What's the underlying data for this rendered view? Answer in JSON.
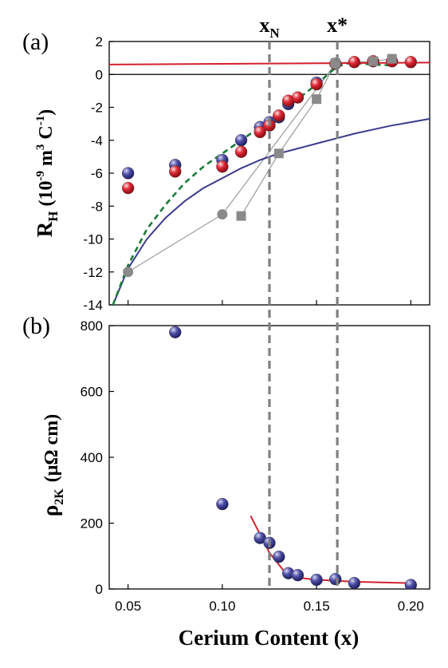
{
  "colors": {
    "blue": "#3a3a8c",
    "red": "#d4202e",
    "green_dashed": "#1a7a3a",
    "gray": "#8a8a8a",
    "marker_line": "#808080"
  },
  "chart_data": [
    {
      "panel": "(a)",
      "type": "scatter",
      "ylabel_main": "R",
      "ylabel_sub": "H",
      "ylabel_units": "(10",
      "ylabel_exp": "-9",
      "ylabel_units2": " m",
      "ylabel_exp2": "3",
      "ylabel_units3": " C",
      "ylabel_exp3": "-1",
      "ylabel_units4": ")",
      "xlim": [
        0.04,
        0.21
      ],
      "ylim": [
        -14,
        2
      ],
      "yticks": [
        2,
        0,
        -2,
        -4,
        -6,
        -8,
        -10,
        -12,
        -14
      ],
      "ytick_labels": [
        "2",
        "0",
        "-2",
        "-4",
        "-6",
        "-8",
        "-10",
        "-12",
        "-14"
      ],
      "series": [
        {
          "marker": "sphere",
          "color": "blue",
          "points": [
            [
              0.05,
              -6.0
            ],
            [
              0.075,
              -5.5
            ],
            [
              0.1,
              -5.2
            ],
            [
              0.11,
              -4.0
            ],
            [
              0.12,
              -3.2
            ],
            [
              0.125,
              -2.9
            ],
            [
              0.13,
              -2.6
            ],
            [
              0.135,
              -1.8
            ],
            [
              0.15,
              -0.5
            ]
          ]
        },
        {
          "marker": "sphere",
          "color": "red",
          "points": [
            [
              0.05,
              -6.9
            ],
            [
              0.075,
              -5.9
            ],
            [
              0.1,
              -5.6
            ],
            [
              0.11,
              -4.7
            ],
            [
              0.12,
              -3.5
            ],
            [
              0.125,
              -3.1
            ],
            [
              0.13,
              -2.5
            ],
            [
              0.135,
              -1.6
            ],
            [
              0.14,
              -1.4
            ],
            [
              0.15,
              -0.6
            ],
            [
              0.16,
              0.65
            ],
            [
              0.17,
              0.75
            ],
            [
              0.18,
              0.8
            ],
            [
              0.19,
              0.8
            ],
            [
              0.2,
              0.75
            ]
          ]
        },
        {
          "marker": "circle",
          "color": "gray",
          "connected": true,
          "points": [
            [
              0.05,
              -12.0
            ],
            [
              0.1,
              -8.5
            ],
            [
              0.16,
              0.65
            ]
          ]
        },
        {
          "marker": "square",
          "color": "gray",
          "connected": true,
          "points": [
            [
              0.11,
              -8.6
            ],
            [
              0.13,
              -4.8
            ],
            [
              0.15,
              -1.5
            ],
            [
              0.16,
              0.7
            ],
            [
              0.18,
              0.8
            ],
            [
              0.19,
              0.95
            ]
          ]
        }
      ],
      "curves": [
        {
          "style": "solid",
          "color": "blue",
          "points": [
            [
              0.042,
              -14.0
            ],
            [
              0.05,
              -11.8
            ],
            [
              0.06,
              -10.0
            ],
            [
              0.07,
              -8.7
            ],
            [
              0.08,
              -7.7
            ],
            [
              0.09,
              -6.9
            ],
            [
              0.1,
              -6.3
            ],
            [
              0.11,
              -5.7
            ],
            [
              0.12,
              -5.2
            ],
            [
              0.13,
              -4.8
            ],
            [
              0.14,
              -4.5
            ],
            [
              0.15,
              -4.2
            ],
            [
              0.16,
              -3.9
            ],
            [
              0.17,
              -3.6
            ],
            [
              0.18,
              -3.35
            ],
            [
              0.19,
              -3.1
            ],
            [
              0.2,
              -2.9
            ],
            [
              0.21,
              -2.7
            ]
          ]
        },
        {
          "style": "dashed",
          "color": "green_dashed",
          "points": [
            [
              0.042,
              -14.0
            ],
            [
              0.05,
              -11.6
            ],
            [
              0.06,
              -9.4
            ],
            [
              0.07,
              -7.9
            ],
            [
              0.08,
              -6.6
            ],
            [
              0.09,
              -5.6
            ],
            [
              0.1,
              -4.8
            ],
            [
              0.11,
              -4.0
            ],
            [
              0.12,
              -3.2
            ],
            [
              0.13,
              -2.4
            ],
            [
              0.14,
              -1.5
            ],
            [
              0.15,
              -0.6
            ],
            [
              0.155,
              -0.1
            ],
            [
              0.16,
              0.4
            ],
            [
              0.165,
              0.65
            ],
            [
              0.17,
              0.7
            ],
            [
              0.18,
              0.6
            ],
            [
              0.19,
              0.55
            ]
          ]
        },
        {
          "style": "solid",
          "color": "red",
          "points": [
            [
              0.04,
              0.6
            ],
            [
              0.21,
              0.72
            ]
          ]
        }
      ]
    },
    {
      "panel": "(b)",
      "type": "scatter",
      "ylabel_main": "ρ",
      "ylabel_sub": "2K",
      "ylabel_units": "(μΩ cm)",
      "xlabel": "Cerium Content (x)",
      "xlim": [
        0.04,
        0.21
      ],
      "ylim": [
        0,
        800
      ],
      "xticks": [
        0.05,
        0.1,
        0.15,
        0.2
      ],
      "xtick_labels": [
        "0.05",
        "0.10",
        "0.15",
        "0.20"
      ],
      "yticks": [
        0,
        200,
        400,
        600,
        800
      ],
      "ytick_labels": [
        "0",
        "200",
        "400",
        "600",
        "800"
      ],
      "series": [
        {
          "marker": "sphere",
          "color": "blue",
          "points": [
            [
              0.075,
              780
            ],
            [
              0.1,
              258
            ],
            [
              0.12,
              155
            ],
            [
              0.125,
              140
            ],
            [
              0.13,
              98
            ],
            [
              0.135,
              48
            ],
            [
              0.14,
              42
            ],
            [
              0.15,
              28
            ],
            [
              0.16,
              30
            ],
            [
              0.17,
              18
            ],
            [
              0.2,
              12
            ]
          ]
        }
      ],
      "curves": [
        {
          "style": "solid",
          "color": "red",
          "points": [
            [
              0.115,
              222
            ],
            [
              0.125,
              110
            ],
            [
              0.135,
              38
            ],
            [
              0.15,
              28
            ],
            [
              0.17,
              22
            ],
            [
              0.2,
              18
            ]
          ]
        }
      ]
    }
  ],
  "markers": [
    {
      "label": "x",
      "sub": "N",
      "x": 0.125
    },
    {
      "label": "x*",
      "sub": "",
      "x": 0.161
    }
  ]
}
